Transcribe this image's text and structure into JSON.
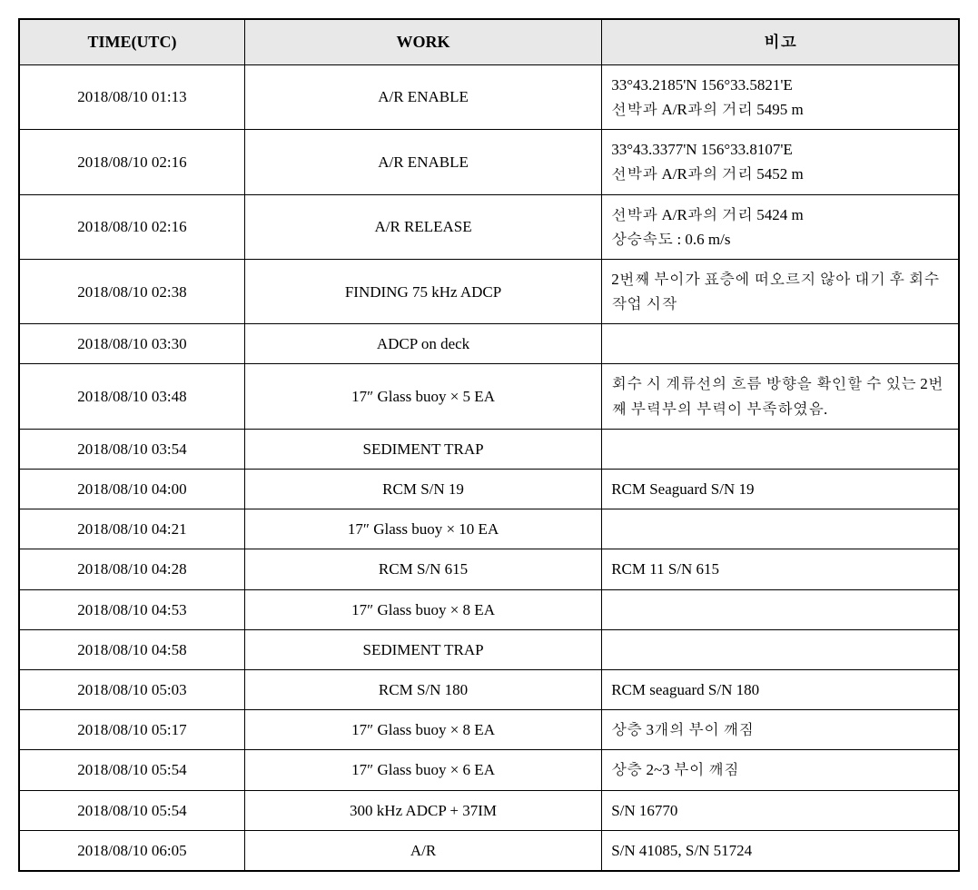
{
  "table": {
    "headers": {
      "time": "TIME(UTC)",
      "work": "WORK",
      "note": "비고"
    },
    "rows": [
      {
        "time": "2018/08/10 01:13",
        "work": "A/R ENABLE",
        "note": "33°43.2185'N 156°33.5821'E\n선박과 A/R과의 거리 5495 m"
      },
      {
        "time": "2018/08/10 02:16",
        "work": "A/R ENABLE",
        "note": "33°43.3377'N 156°33.8107'E\n선박과 A/R과의 거리 5452 m"
      },
      {
        "time": "2018/08/10 02:16",
        "work": "A/R RELEASE",
        "note": "선박과 A/R과의 거리 5424 m\n상승속도 : 0.6 m/s"
      },
      {
        "time": "2018/08/10 02:38",
        "work": "FINDING 75 kHz ADCP",
        "note": "2번째 부이가 표층에 떠오르지 않아 대기 후 회수 작업 시작"
      },
      {
        "time": "2018/08/10 03:30",
        "work": "ADCP on deck",
        "note": ""
      },
      {
        "time": "2018/08/10 03:48",
        "work": "17″ Glass buoy × 5 EA",
        "note": "회수 시 계류선의 흐름 방향을 확인할 수 있는 2번째 부력부의 부력이 부족하였음."
      },
      {
        "time": "2018/08/10 03:54",
        "work": "SEDIMENT TRAP",
        "note": ""
      },
      {
        "time": "2018/08/10 04:00",
        "work": "RCM S/N 19",
        "note": "RCM Seaguard S/N 19"
      },
      {
        "time": "2018/08/10 04:21",
        "work": "17″ Glass buoy × 10 EA",
        "note": ""
      },
      {
        "time": "2018/08/10 04:28",
        "work": "RCM S/N 615",
        "note": "RCM 11 S/N 615"
      },
      {
        "time": "2018/08/10 04:53",
        "work": "17″ Glass buoy × 8 EA",
        "note": ""
      },
      {
        "time": "2018/08/10 04:58",
        "work": "SEDIMENT TRAP",
        "note": ""
      },
      {
        "time": "2018/08/10 05:03",
        "work": "RCM S/N 180",
        "note": "RCM seaguard S/N 180"
      },
      {
        "time": "2018/08/10 05:17",
        "work": "17″ Glass buoy × 8 EA",
        "note": "상층 3개의 부이 깨짐"
      },
      {
        "time": "2018/08/10 05:54",
        "work": "17″ Glass buoy × 6 EA",
        "note": "상층 2~3 부이 깨짐"
      },
      {
        "time": "2018/08/10 05:54",
        "work": "300 kHz ADCP + 37IM",
        "note": "S/N 16770"
      },
      {
        "time": "2018/08/10 06:05",
        "work": "A/R",
        "note": "S/N 41085, S/N 51724"
      }
    ]
  },
  "style": {
    "header_bg": "#e8e8e8",
    "border_color": "#000000",
    "background": "#ffffff",
    "font_size_cell": 17,
    "font_size_header": 18
  }
}
